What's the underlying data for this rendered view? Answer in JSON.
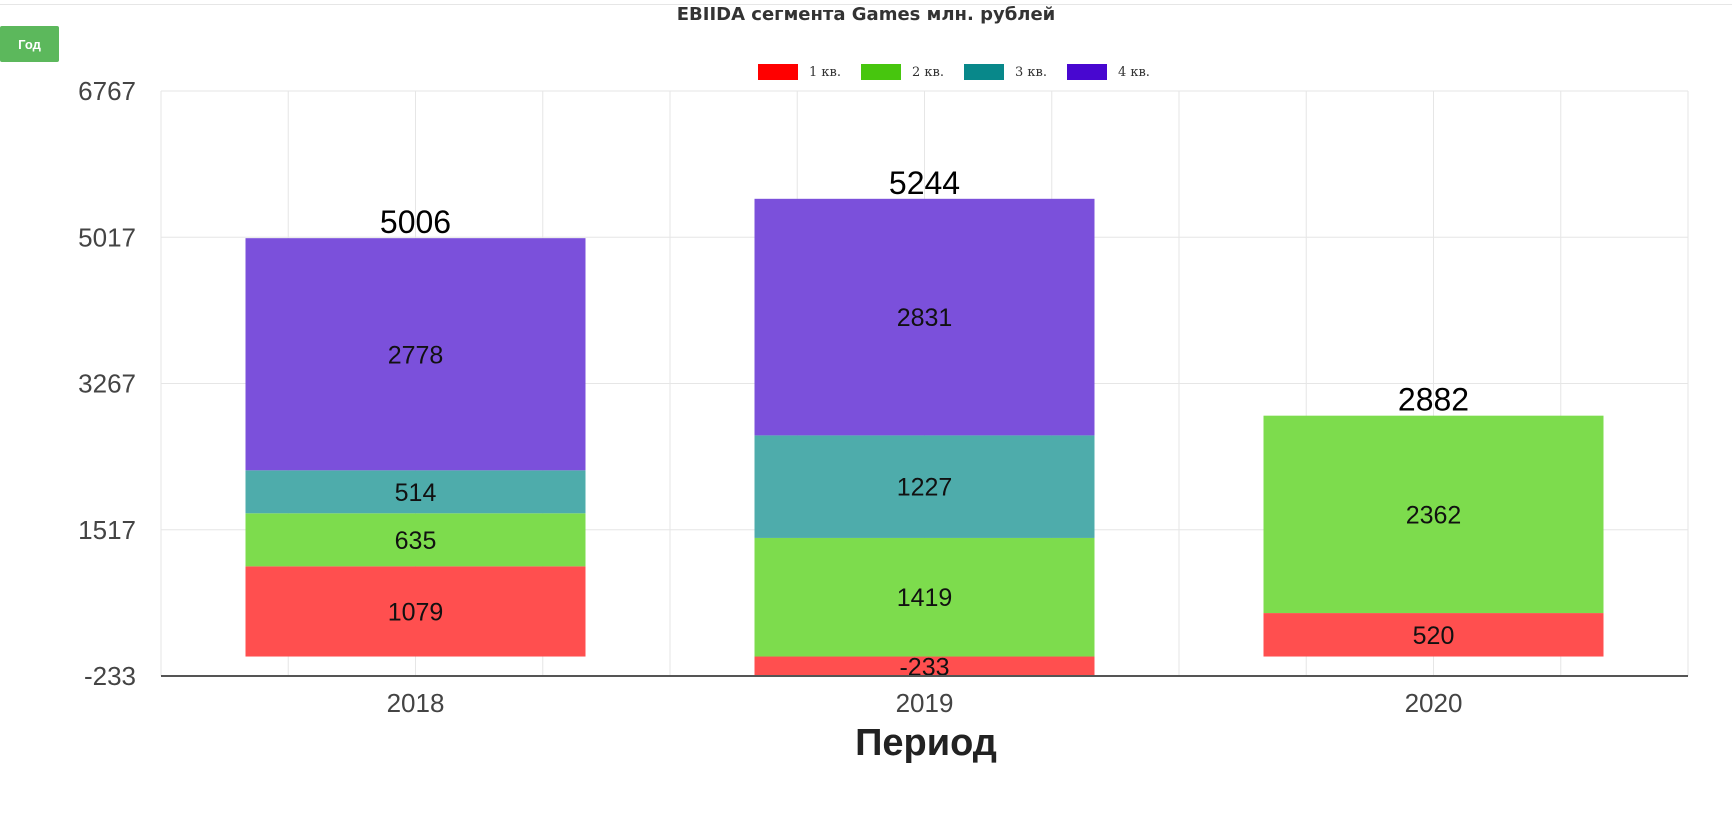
{
  "controls": {
    "period_button": "Год"
  },
  "chart_data": {
    "type": "bar",
    "stacked": true,
    "title": "EBIIDA сегмента Games млн. рублей",
    "xlabel": "Период",
    "ylabel": "",
    "categories": [
      "2018",
      "2019",
      "2020"
    ],
    "series": [
      {
        "name": "1 кв.",
        "color": "#ff0000",
        "bar_color": "#ff4f4f",
        "values": [
          1079,
          -233,
          520
        ]
      },
      {
        "name": "2 кв.",
        "color": "#47c60e",
        "bar_color": "#7ddc4d",
        "values": [
          635,
          1419,
          2362
        ]
      },
      {
        "name": "3 кв.",
        "color": "#08888a",
        "bar_color": "#4eacab",
        "values": [
          514,
          1227,
          null
        ]
      },
      {
        "name": "4 кв.",
        "color": "#4807d0",
        "bar_color": "#7b50db",
        "values": [
          2778,
          2831,
          null
        ]
      }
    ],
    "totals": [
      "5006",
      "5244",
      "2882"
    ],
    "y_ticks": [
      "6767",
      "5017",
      "3267",
      "1517",
      "-233"
    ],
    "ylim": [
      -233,
      6767
    ],
    "grid": true,
    "legend_position": "top-center"
  }
}
